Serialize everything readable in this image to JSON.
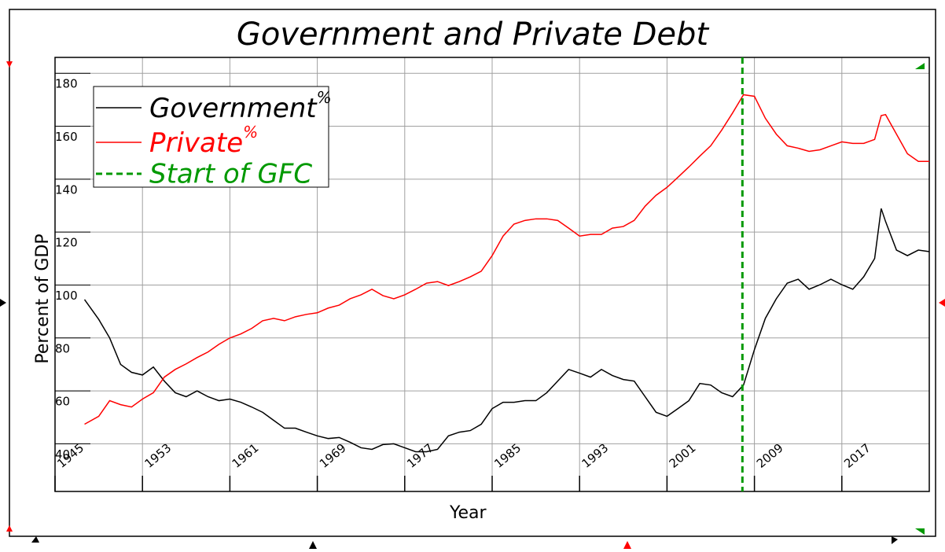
{
  "chart_data": {
    "type": "line",
    "title": "Government and Private Debt",
    "x_label": "Year",
    "y_label": "Percent of GDP",
    "x": [
      1947.7,
      1949,
      1950,
      1951,
      1952,
      1953,
      1954,
      1955,
      1956,
      1957,
      1958,
      1959,
      1960,
      1961,
      1962,
      1963,
      1964,
      1965,
      1966,
      1967,
      1968,
      1969,
      1970,
      1971,
      1972,
      1973,
      1974,
      1975,
      1976,
      1977,
      1978,
      1979,
      1980,
      1981,
      1982,
      1983,
      1984,
      1985,
      1986,
      1987,
      1988,
      1989,
      1990,
      1991,
      1992,
      1993,
      1994,
      1995,
      1996,
      1997,
      1998,
      1999,
      2000,
      2001,
      2002,
      2003,
      2004,
      2005,
      2006,
      2007,
      2008,
      2009,
      2010,
      2011,
      2012,
      2013,
      2014,
      2015,
      2016,
      2017,
      2018,
      2019,
      2020,
      2020.6,
      2021,
      2022,
      2023,
      2024,
      2025
    ],
    "series": [
      {
        "name": "Government",
        "unit": "%",
        "color": "#000000",
        "values": [
          94.5,
          87,
          80,
          70,
          67,
          66,
          69,
          63.7,
          59.3,
          57.8,
          60,
          57.8,
          56.3,
          56.9,
          55.7,
          53.9,
          51.9,
          48.9,
          45.9,
          45.9,
          44.4,
          43,
          42,
          42.4,
          40.6,
          38.5,
          37.9,
          39.7,
          40,
          38.5,
          37,
          37,
          37.9,
          43,
          44.4,
          45,
          47.4,
          53.3,
          55.7,
          55.7,
          56.3,
          56.3,
          59.3,
          63.7,
          68.1,
          66.7,
          65.2,
          68.1,
          65.8,
          64.3,
          63.7,
          57.8,
          51.9,
          50.4,
          53.3,
          56.3,
          62.8,
          62.2,
          59.3,
          57.8,
          62.2,
          75.6,
          87.4,
          94.8,
          100.7,
          102.2,
          98.4,
          100.1,
          102.2,
          100.1,
          98.4,
          103.1,
          110,
          128.9,
          124,
          113.2,
          111.1,
          113.2,
          112.6
        ]
      },
      {
        "name": "Private",
        "unit": "%",
        "color": "#ff0000",
        "values": [
          47.4,
          50.4,
          56.3,
          54.8,
          53.9,
          56.9,
          59.3,
          65.2,
          68.1,
          70.2,
          72.6,
          74.7,
          77.6,
          80,
          81.5,
          83.6,
          86.5,
          87.4,
          86.5,
          88,
          88.9,
          89.5,
          91.3,
          92.4,
          94.8,
          96.3,
          98.4,
          96,
          94.8,
          96.3,
          98.4,
          100.7,
          101.3,
          99.8,
          101.3,
          103.1,
          105.2,
          111.1,
          118.5,
          123,
          124.4,
          125,
          125,
          124.4,
          121.5,
          118.5,
          119.1,
          119.1,
          121.5,
          122.1,
          124.4,
          129.8,
          133.9,
          136.9,
          140.7,
          144.6,
          148.7,
          152.6,
          158.5,
          165,
          171.9,
          171.3,
          163,
          157,
          152.6,
          151.7,
          150.5,
          151.1,
          152.6,
          154.1,
          153.5,
          153.5,
          155,
          164,
          164.4,
          157,
          149.6,
          146.7,
          146.7
        ]
      }
    ],
    "vline": {
      "x": 2007.9,
      "label": "Start of GFC",
      "color": "#009900"
    },
    "xlim": [
      1945,
      2025
    ],
    "ylim": [
      22,
      186
    ],
    "xticks": [
      1945,
      1953,
      1961,
      1969,
      1977,
      1985,
      1993,
      2001,
      2009,
      2017
    ],
    "yticks": [
      40,
      60,
      80,
      100,
      120,
      140,
      160,
      180
    ],
    "grid": true,
    "legend": "upper left"
  }
}
